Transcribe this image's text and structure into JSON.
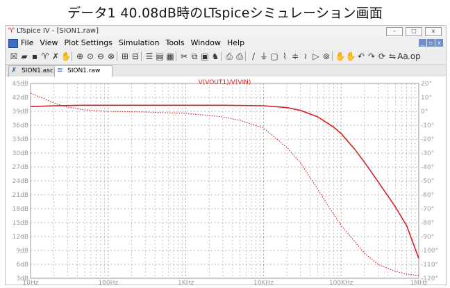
{
  "caption": "データ1  40.08dB時のLTspiceシミュレーション画面",
  "window": {
    "title": "LTspice IV - [SION1.raw]",
    "buttons": [
      "–",
      "□",
      "x"
    ]
  },
  "menu": {
    "items": [
      "File",
      "View",
      "Plot Settings",
      "Simulation",
      "Tools",
      "Window",
      "Help"
    ],
    "mdi_buttons": [
      "_",
      "▫",
      "x"
    ]
  },
  "toolbar": {
    "icons": [
      "new-schematic-icon",
      "open-icon",
      "save-icon",
      "control-panel-icon",
      "run-icon",
      "halt-icon",
      "zoom-in-icon",
      "pan-icon",
      "zoom-out-icon",
      "zoom-cancel-icon",
      "autorange-icon",
      "add-trace-icon",
      "tile-icon",
      "cascade-icon",
      "mark-icon",
      "cut-icon",
      "copy-icon",
      "paste-icon",
      "find-icon",
      "print-preview-icon",
      "print-icon",
      "wire-icon",
      "ground-icon",
      "label-icon",
      "resistor-icon",
      "capacitor-icon",
      "inductor-icon",
      "diode-icon",
      "component-icon",
      "move-icon",
      "drag-icon",
      "undo-icon",
      "redo-icon",
      "rotate-icon",
      "mirror-icon",
      "text-icon",
      "spice-directive-icon"
    ],
    "glyphs": [
      "☒",
      "▰",
      "▪",
      "♈",
      "✗",
      "✋",
      "⊕",
      "⊙",
      "⊖",
      "⊗",
      "⊞",
      "⊟",
      "☰",
      "▤",
      "▦",
      "✂",
      "⧉",
      "▣",
      "♞",
      "⎙",
      "⎙",
      "∕",
      "⏚",
      "▢",
      "⌇",
      "≑",
      "≀",
      "▷",
      "⊚",
      "✋",
      "✋",
      "↶",
      "↷",
      "⟳",
      "⇋",
      "Aa",
      ".op"
    ]
  },
  "tabs": [
    {
      "label": "SION1.asc",
      "icon": "schematic-icon"
    },
    {
      "label": "SION1.raw",
      "icon": "waveform-icon"
    }
  ],
  "chart_data": {
    "type": "line",
    "title": "V(VOUT1)/V(VIN)",
    "xscale": "log",
    "x_ticks": [
      "10Hz",
      "100Hz",
      "1KHz",
      "10KHz",
      "100KHz",
      "1MHz"
    ],
    "xlim": [
      10,
      1000000
    ],
    "y_left_ticks": [
      "45dB",
      "42dB",
      "39dB",
      "36dB",
      "33dB",
      "30dB",
      "27dB",
      "24dB",
      "21dB",
      "18dB",
      "15dB",
      "12dB",
      "9dB",
      "6dB",
      "3dB"
    ],
    "ylim_left": [
      3,
      45
    ],
    "y_right_ticks": [
      "20°",
      "10°",
      "0°",
      "-10°",
      "-20°",
      "-30°",
      "-40°",
      "-50°",
      "-60°",
      "-70°",
      "-80°",
      "-90°",
      "-100°",
      "-110°",
      "-120°"
    ],
    "ylim_right": [
      -120,
      20
    ],
    "grid": true,
    "series": [
      {
        "name": "magnitude",
        "style": "solid",
        "axis": "left",
        "color": "#d42020",
        "x": [
          10,
          20,
          50,
          100,
          300,
          1000,
          3000,
          10000,
          20000,
          30000,
          50000,
          80000,
          100000,
          150000,
          200000,
          300000,
          500000,
          700000,
          1000000
        ],
        "y": [
          40.0,
          40.2,
          40.3,
          40.3,
          40.3,
          40.3,
          40.3,
          40.2,
          39.8,
          39.2,
          37.8,
          35.6,
          34.2,
          30.8,
          28.0,
          23.8,
          18.4,
          14.3,
          7.3
        ]
      },
      {
        "name": "phase",
        "style": "dashed",
        "axis": "right",
        "color": "#d42020",
        "x": [
          10,
          15,
          20,
          30,
          50,
          70,
          100,
          300,
          1000,
          3000,
          5000,
          10000,
          20000,
          30000,
          50000,
          70000,
          100000,
          200000,
          300000,
          500000,
          700000,
          1000000
        ],
        "y": [
          13,
          9,
          6,
          3,
          1,
          0.5,
          0,
          -0.5,
          -1.5,
          -4,
          -6.5,
          -12,
          -26,
          -37,
          -56,
          -69,
          -82,
          -102,
          -110,
          -115,
          -117,
          -118
        ]
      }
    ]
  }
}
